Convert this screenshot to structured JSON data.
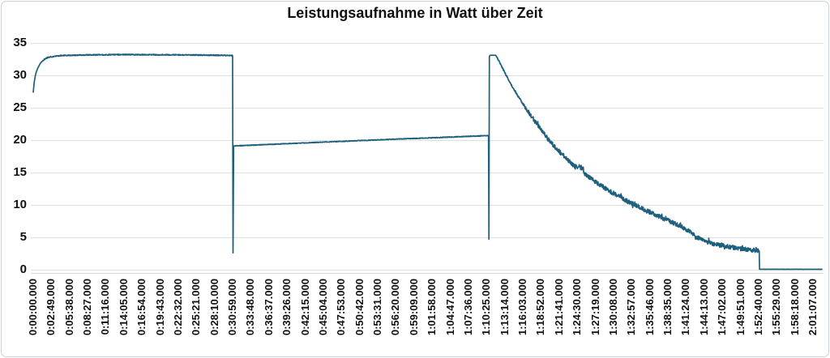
{
  "page": {
    "background": "#ffffff",
    "border_color": "#ccd3d8"
  },
  "chart_data": {
    "type": "line",
    "title": "Leistungsaufnahme in Watt über Zeit",
    "xlabel": "",
    "ylabel": "",
    "unit": "Watt",
    "ylim": [
      0,
      35
    ],
    "y_ticks": [
      0,
      5,
      10,
      15,
      20,
      25,
      30,
      35
    ],
    "grid": "horizontal",
    "legend": "none",
    "line_color": "#1d5f7c",
    "gridline_color": "#e0e0e0",
    "axis_line_color": "#dcdcdc",
    "text_color": "#111111",
    "x_tick_interval_seconds": 169,
    "x_axis_max_seconds": 7350,
    "x_tick_labels": [
      "0:00:00.000",
      "0:02:49.000",
      "0:05:38.000",
      "0:08:27.000",
      "0:11:16.000",
      "0:14:05.000",
      "0:16:54.000",
      "0:19:43.000",
      "0:22:32.000",
      "0:25:21.000",
      "0:28:10.000",
      "0:30:59.000",
      "0:33:48.000",
      "0:36:37.000",
      "0:39:26.000",
      "0:42:15.000",
      "0:45:04.000",
      "0:47:53.000",
      "0:50:42.000",
      "0:53:31.000",
      "0:56:20.000",
      "0:59:09.000",
      "1:01:58.000",
      "1:04:47.000",
      "1:07:36.000",
      "1:10:25.000",
      "1:13:14.000",
      "1:16:03.000",
      "1:18:52.000",
      "1:21:41.000",
      "1:24:30.000",
      "1:27:19.000",
      "1:30:08.000",
      "1:32:57.000",
      "1:35:46.000",
      "1:38:35.000",
      "1:41:24.000",
      "1:44:13.000",
      "1:47:02.000",
      "1:49:51.000",
      "1:52:40.000",
      "1:55:29.000",
      "1:58:18.000",
      "2:01:07.000"
    ],
    "series": [
      {
        "anchors_t_seconds_watts": [
          [
            0,
            27.4
          ],
          [
            10,
            29.0
          ],
          [
            20,
            30.0
          ],
          [
            30,
            30.6
          ],
          [
            45,
            31.2
          ],
          [
            68,
            31.9
          ],
          [
            106,
            32.5
          ],
          [
            144,
            32.8
          ],
          [
            260,
            33.05
          ],
          [
            500,
            33.15
          ],
          [
            900,
            33.2
          ],
          [
            1400,
            33.15
          ],
          [
            1700,
            33.1
          ],
          [
            1858,
            33.05
          ],
          [
            1862,
            2.6
          ],
          [
            1868,
            19.1
          ],
          [
            2500,
            19.55
          ],
          [
            3300,
            20.1
          ],
          [
            4243,
            20.7
          ],
          [
            4247,
            4.7
          ],
          [
            4251,
            32.9
          ],
          [
            4258,
            33.1
          ],
          [
            4310,
            33.1
          ],
          [
            4360,
            31.6
          ],
          [
            4405,
            30.1
          ],
          [
            4450,
            28.7
          ],
          [
            4503,
            27.2
          ],
          [
            4556,
            25.8
          ],
          [
            4616,
            24.3
          ],
          [
            4677,
            22.9
          ],
          [
            4737,
            21.5
          ],
          [
            4797,
            20.2
          ],
          [
            4865,
            18.9
          ],
          [
            4941,
            17.6
          ],
          [
            5016,
            16.4
          ],
          [
            5069,
            15.6
          ],
          [
            5099,
            16.1
          ],
          [
            5137,
            14.9
          ],
          [
            5205,
            14.0
          ],
          [
            5281,
            13.1
          ],
          [
            5356,
            12.3
          ],
          [
            5447,
            11.4
          ],
          [
            5545,
            10.5
          ],
          [
            5643,
            9.7
          ],
          [
            5734,
            9.0
          ],
          [
            5847,
            8.1
          ],
          [
            5960,
            7.3
          ],
          [
            6074,
            6.35
          ],
          [
            6127,
            5.8
          ],
          [
            6187,
            5.0
          ],
          [
            6248,
            4.5
          ],
          [
            6338,
            4.0
          ],
          [
            6451,
            3.6
          ],
          [
            6565,
            3.3
          ],
          [
            6655,
            3.1
          ],
          [
            6761,
            2.95
          ],
          [
            6766,
            2.9
          ],
          [
            6769,
            0.07
          ],
          [
            7350,
            0.07
          ]
        ],
        "noise_regions": [
          {
            "from": 80,
            "to": 1858,
            "amp": 0.07
          },
          {
            "from": 1880,
            "to": 4236,
            "amp": 0.05
          },
          {
            "from": 4320,
            "to": 4560,
            "amp": 0.13
          },
          {
            "from": 4560,
            "to": 6758,
            "amp": 0.33
          },
          {
            "from": 6775,
            "to": 7350,
            "amp": 0.012
          }
        ]
      }
    ]
  }
}
